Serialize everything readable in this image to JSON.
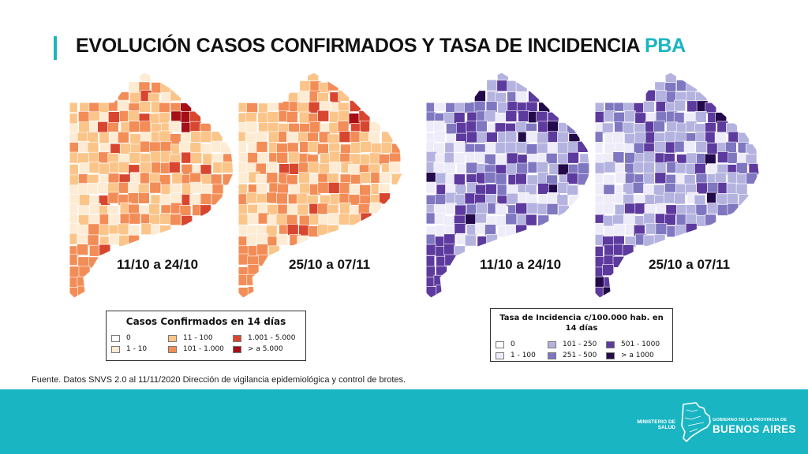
{
  "header": {
    "title_main": "EVOLUCIÓN CASOS CONFIRMADOS Y TASA DE INCIDENCIA ",
    "title_accent": "PBA",
    "accent_color": "#19b5c3"
  },
  "maps": [
    {
      "label": "11/10 a 24/10",
      "palette": "orange",
      "variant": 0
    },
    {
      "label": "25/10 a 07/11",
      "palette": "orange",
      "variant": 1
    },
    {
      "label": "11/10 a 24/10",
      "palette": "purple",
      "variant": 2
    },
    {
      "label": "25/10 a 07/11",
      "palette": "purple",
      "variant": 3
    }
  ],
  "legend_cases": {
    "title": "Casos Confirmados en 14 días",
    "items": [
      {
        "label": "0",
        "color": "#ffffff"
      },
      {
        "label": "1 - 10",
        "color": "#fdebd3"
      },
      {
        "label": "11 - 100",
        "color": "#fbc58a"
      },
      {
        "label": "101 - 1.000",
        "color": "#f38d57"
      },
      {
        "label": "1.001 - 5.000",
        "color": "#d9462f"
      },
      {
        "label": "> a 5.000",
        "color": "#a50f15"
      }
    ]
  },
  "legend_rate": {
    "title_line1": "Tasa de Incidencia c/100.000 hab. en",
    "title_line2": "14 días",
    "items": [
      {
        "label": "0",
        "color": "#ffffff"
      },
      {
        "label": "1 - 100",
        "color": "#eeecf8"
      },
      {
        "label": "101 - 250",
        "color": "#b4b3e0"
      },
      {
        "label": "251 - 500",
        "color": "#8077c1"
      },
      {
        "label": "501 - 1000",
        "color": "#5d3a9e"
      },
      {
        "label": "> a 1000",
        "color": "#230a4a"
      }
    ]
  },
  "source": "Fuente. Datos SNVS 2.0 al 11/11/2020 Dirección de vigilancia epidemiológica y control de brotes.",
  "footer": {
    "ministry_line1": "MINISTERIO DE",
    "ministry_line2": "SALUD",
    "gov_small": "GOBIERNO DE LA PROVINCIA DE",
    "gov_big": "BUENOS AIRES"
  }
}
